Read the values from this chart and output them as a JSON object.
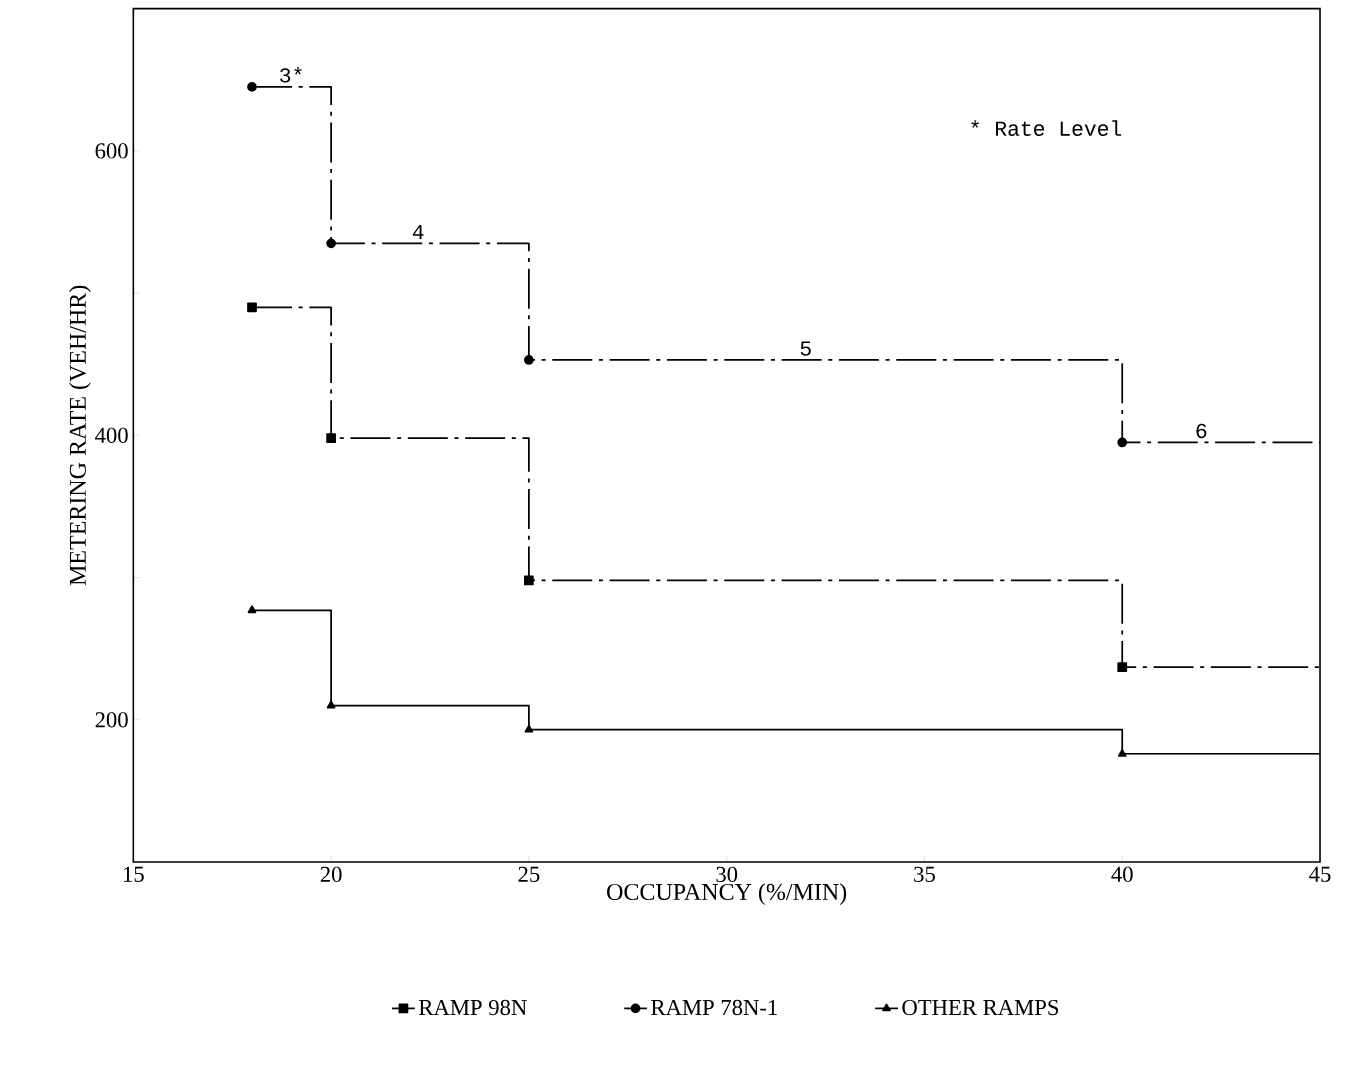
{
  "chart_data": {
    "type": "step",
    "xlabel": "OCCUPANCY (%/MIN)",
    "ylabel": "METERING RATE (VEH/HR)",
    "xlim": [
      15,
      45
    ],
    "xticks": [
      15,
      20,
      25,
      30,
      35,
      40,
      45
    ],
    "ylim": [
      100,
      700
    ],
    "yticks": [
      200,
      {
        "value": 300,
        "label": null
      },
      400,
      {
        "value": 500,
        "label": null
      },
      600
    ],
    "grid": false,
    "legend": "bottom",
    "series": [
      {
        "name": "RAMP 98N",
        "color": "#000000",
        "marker": "square",
        "line_style": "dashed",
        "x": [
          18,
          20,
          25,
          40,
          45
        ],
        "values": [
          490,
          398,
          298,
          237,
          237
        ]
      },
      {
        "name": "RAMP 78N-1",
        "color": "#000000",
        "marker": "circle",
        "line_style": "dashed",
        "x": [
          18,
          20,
          25,
          40,
          45
        ],
        "values": [
          645,
          535,
          453,
          395,
          395
        ]
      },
      {
        "name": "OTHER RAMPS",
        "color": "#000000",
        "marker": "triangle",
        "line_style": "solid",
        "x": [
          18,
          20,
          25,
          40,
          45
        ],
        "values": [
          277,
          210,
          193,
          176,
          176
        ]
      }
    ],
    "annotations": [
      {
        "text": "3*",
        "x": 19,
        "y": 645
      },
      {
        "text": "4",
        "x": 22.2,
        "y": 535
      },
      {
        "text": "5",
        "x": 32,
        "y": 453
      },
      {
        "text": "6",
        "x": 42,
        "y": 395
      },
      "* Rate Level"
    ]
  }
}
